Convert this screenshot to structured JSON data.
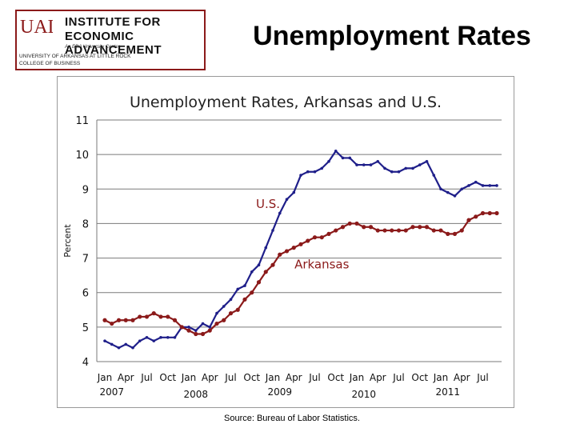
{
  "header": {
    "logo": {
      "letters": "UALR",
      "line1": "INSTITUTE FOR",
      "line2": "ECONOMIC ADVANCEMENT",
      "line3": "An EDA University Center",
      "line4": "UNIVERSITY OF ARKANSAS AT LITTLE ROCK",
      "line5": "COLLEGE OF BUSINESS"
    },
    "title": "Unemployment Rates"
  },
  "footer": {
    "source": "Source: Bureau of Labor Statistics."
  },
  "colors": {
    "us_series": "#1f1f8a",
    "arkansas_series": "#8b1a1a",
    "series_label": "#8b1a1a",
    "logo_border": "#8b1a1a"
  },
  "chart_data": {
    "type": "line",
    "title": "Unemployment Rates, Arkansas and U.S.",
    "ylabel": "Percent",
    "ylim": [
      4,
      11
    ],
    "yticks": [
      4,
      5,
      6,
      7,
      8,
      9,
      10,
      11
    ],
    "grid": true,
    "x": [
      "Jan 2007",
      "Feb 2007",
      "Mar 2007",
      "Apr 2007",
      "May 2007",
      "Jun 2007",
      "Jul 2007",
      "Aug 2007",
      "Sep 2007",
      "Oct 2007",
      "Nov 2007",
      "Dec 2007",
      "Jan 2008",
      "Feb 2008",
      "Mar 2008",
      "Apr 2008",
      "May 2008",
      "Jun 2008",
      "Jul 2008",
      "Aug 2008",
      "Sep 2008",
      "Oct 2008",
      "Nov 2008",
      "Dec 2008",
      "Jan 2009",
      "Feb 2009",
      "Mar 2009",
      "Apr 2009",
      "May 2009",
      "Jun 2009",
      "Jul 2009",
      "Aug 2009",
      "Sep 2009",
      "Oct 2009",
      "Nov 2009",
      "Dec 2009",
      "Jan 2010",
      "Feb 2010",
      "Mar 2010",
      "Apr 2010",
      "May 2010",
      "Jun 2010",
      "Jul 2010",
      "Aug 2010",
      "Sep 2010",
      "Oct 2010",
      "Nov 2010",
      "Dec 2010",
      "Jan 2011",
      "Feb 2011",
      "Mar 2011",
      "Apr 2011",
      "May 2011",
      "Jun 2011",
      "Jul 2011",
      "Aug 2011",
      "Sep 2011"
    ],
    "month_tick_labels": [
      "Jan",
      "Apr",
      "Jul",
      "Oct",
      "Jan",
      "Apr",
      "Jul",
      "Oct",
      "Jan",
      "Apr",
      "Jul",
      "Oct",
      "Jan",
      "Apr",
      "Jul",
      "Oct",
      "Jan",
      "Apr",
      "Jul"
    ],
    "year_labels": [
      "2007",
      "2008",
      "2009",
      "2010",
      "2011"
    ],
    "series": [
      {
        "name": "U.S.",
        "values": [
          4.6,
          4.5,
          4.4,
          4.5,
          4.4,
          4.6,
          4.7,
          4.6,
          4.7,
          4.7,
          4.7,
          5.0,
          5.0,
          4.9,
          5.1,
          5.0,
          5.4,
          5.6,
          5.8,
          6.1,
          6.2,
          6.6,
          6.8,
          7.3,
          7.8,
          8.3,
          8.7,
          8.9,
          9.4,
          9.5,
          9.5,
          9.6,
          9.8,
          10.1,
          9.9,
          9.9,
          9.7,
          9.7,
          9.7,
          9.8,
          9.6,
          9.5,
          9.5,
          9.6,
          9.6,
          9.7,
          9.8,
          9.4,
          9.0,
          8.9,
          8.8,
          9.0,
          9.1,
          9.2,
          9.1,
          9.1,
          9.1
        ]
      },
      {
        "name": "Arkansas",
        "values": [
          5.2,
          5.1,
          5.2,
          5.2,
          5.2,
          5.3,
          5.3,
          5.4,
          5.3,
          5.3,
          5.2,
          5.0,
          4.9,
          4.8,
          4.8,
          4.9,
          5.1,
          5.2,
          5.4,
          5.5,
          5.8,
          6.0,
          6.3,
          6.6,
          6.8,
          7.1,
          7.2,
          7.3,
          7.4,
          7.5,
          7.6,
          7.6,
          7.7,
          7.8,
          7.9,
          8.0,
          8.0,
          7.9,
          7.9,
          7.8,
          7.8,
          7.8,
          7.8,
          7.8,
          7.9,
          7.9,
          7.9,
          7.8,
          7.8,
          7.7,
          7.7,
          7.8,
          8.1,
          8.2,
          8.3,
          8.3,
          8.3
        ]
      }
    ]
  }
}
